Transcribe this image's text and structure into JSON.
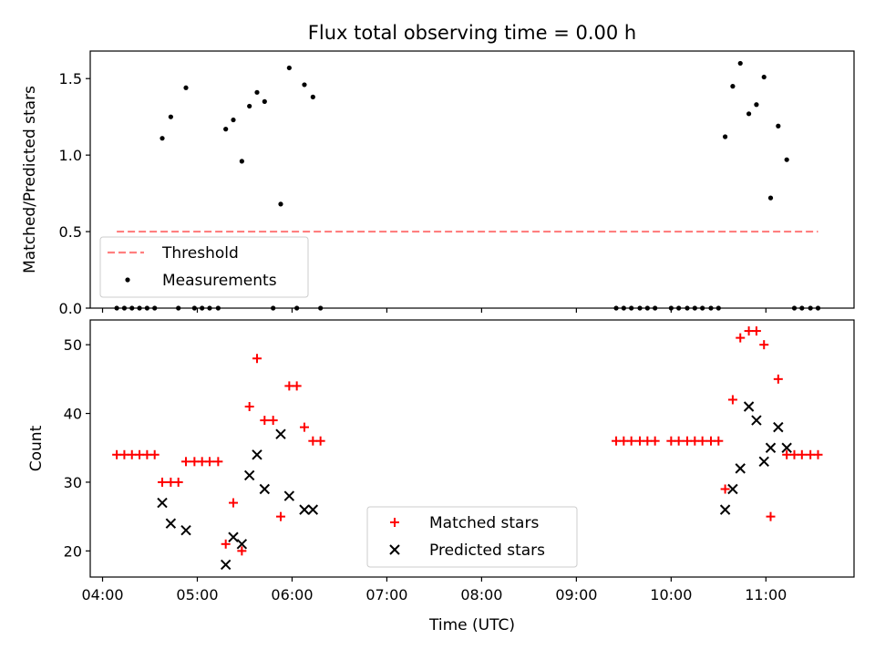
{
  "title": "Flux total observing time = 0.00 h",
  "chart_data": [
    {
      "type": "scatter",
      "ylabel": "Matched/Predicted stars",
      "xlim": [
        3.87,
        11.93
      ],
      "ylim": [
        0,
        1.68
      ],
      "yticks": [
        {
          "v": 0.0,
          "label": "0.0"
        },
        {
          "v": 0.5,
          "label": "0.5"
        },
        {
          "v": 1.0,
          "label": "1.0"
        },
        {
          "v": 1.5,
          "label": "1.5"
        }
      ],
      "legend": {
        "placement": "lower-left",
        "items": [
          {
            "label": "Threshold",
            "kind": "dash-line",
            "color": "#ff7f7f"
          },
          {
            "label": "Measurements",
            "kind": "dot",
            "color": "#000000"
          }
        ]
      },
      "threshold": {
        "value": 0.5,
        "x_range": [
          4.15,
          11.55
        ],
        "color": "#ff7f7f"
      },
      "series": [
        {
          "name": "Measurements",
          "color": "#000000",
          "points": [
            [
              4.15,
              0
            ],
            [
              4.23,
              0
            ],
            [
              4.31,
              0
            ],
            [
              4.39,
              0
            ],
            [
              4.47,
              0
            ],
            [
              4.55,
              0
            ],
            [
              4.63,
              1.11
            ],
            [
              4.72,
              1.25
            ],
            [
              4.8,
              0
            ],
            [
              4.88,
              1.44
            ],
            [
              4.97,
              0
            ],
            [
              5.05,
              0
            ],
            [
              5.13,
              0
            ],
            [
              5.22,
              0
            ],
            [
              5.3,
              1.17
            ],
            [
              5.38,
              1.23
            ],
            [
              5.47,
              0.96
            ],
            [
              5.55,
              1.32
            ],
            [
              5.63,
              1.41
            ],
            [
              5.71,
              1.35
            ],
            [
              5.8,
              0
            ],
            [
              5.88,
              0.68
            ],
            [
              5.97,
              1.57
            ],
            [
              6.05,
              0
            ],
            [
              6.13,
              1.46
            ],
            [
              6.22,
              1.38
            ],
            [
              6.3,
              0
            ],
            [
              9.42,
              0
            ],
            [
              9.5,
              0
            ],
            [
              9.58,
              0
            ],
            [
              9.67,
              0
            ],
            [
              9.75,
              0
            ],
            [
              9.83,
              0
            ],
            [
              10.0,
              0
            ],
            [
              10.08,
              0
            ],
            [
              10.17,
              0
            ],
            [
              10.25,
              0
            ],
            [
              10.33,
              0
            ],
            [
              10.42,
              0
            ],
            [
              10.5,
              0
            ],
            [
              10.57,
              1.12
            ],
            [
              10.65,
              1.45
            ],
            [
              10.73,
              1.6
            ],
            [
              10.82,
              1.27
            ],
            [
              10.9,
              1.33
            ],
            [
              10.98,
              1.51
            ],
            [
              11.05,
              0.72
            ],
            [
              11.13,
              1.19
            ],
            [
              11.22,
              0.97
            ],
            [
              11.3,
              0
            ],
            [
              11.38,
              0
            ],
            [
              11.47,
              0
            ],
            [
              11.55,
              0
            ]
          ]
        }
      ]
    },
    {
      "type": "scatter",
      "ylabel": "Count",
      "xlabel": "Time (UTC)",
      "xlim": [
        3.87,
        11.93
      ],
      "ylim": [
        16.2,
        53.6
      ],
      "xticks": [
        {
          "v": 4,
          "label": "04:00"
        },
        {
          "v": 5,
          "label": "05:00"
        },
        {
          "v": 6,
          "label": "06:00"
        },
        {
          "v": 7,
          "label": "07:00"
        },
        {
          "v": 8,
          "label": "08:00"
        },
        {
          "v": 9,
          "label": "09:00"
        },
        {
          "v": 10,
          "label": "10:00"
        },
        {
          "v": 11,
          "label": "11:00"
        }
      ],
      "yticks": [
        {
          "v": 20,
          "label": "20"
        },
        {
          "v": 30,
          "label": "30"
        },
        {
          "v": 40,
          "label": "40"
        },
        {
          "v": 50,
          "label": "50"
        }
      ],
      "legend": {
        "placement": "lower-center",
        "items": [
          {
            "label": "Matched stars",
            "kind": "plus",
            "color": "#ff0000"
          },
          {
            "label": "Predicted stars",
            "kind": "cross",
            "color": "#000000"
          }
        ]
      },
      "series": [
        {
          "name": "Matched stars",
          "marker": "plus",
          "color": "#ff0000",
          "points": [
            [
              4.15,
              34
            ],
            [
              4.23,
              34
            ],
            [
              4.31,
              34
            ],
            [
              4.39,
              34
            ],
            [
              4.47,
              34
            ],
            [
              4.55,
              34
            ],
            [
              4.63,
              30
            ],
            [
              4.72,
              30
            ],
            [
              4.8,
              30
            ],
            [
              4.88,
              33
            ],
            [
              4.97,
              33
            ],
            [
              5.05,
              33
            ],
            [
              5.13,
              33
            ],
            [
              5.22,
              33
            ],
            [
              5.3,
              21
            ],
            [
              5.38,
              27
            ],
            [
              5.47,
              20
            ],
            [
              5.55,
              41
            ],
            [
              5.63,
              48
            ],
            [
              5.71,
              39
            ],
            [
              5.8,
              39
            ],
            [
              5.88,
              25
            ],
            [
              5.97,
              44
            ],
            [
              6.05,
              44
            ],
            [
              6.13,
              38
            ],
            [
              6.22,
              36
            ],
            [
              6.3,
              36
            ],
            [
              9.42,
              36
            ],
            [
              9.5,
              36
            ],
            [
              9.58,
              36
            ],
            [
              9.67,
              36
            ],
            [
              9.75,
              36
            ],
            [
              9.83,
              36
            ],
            [
              10.0,
              36
            ],
            [
              10.08,
              36
            ],
            [
              10.17,
              36
            ],
            [
              10.25,
              36
            ],
            [
              10.33,
              36
            ],
            [
              10.42,
              36
            ],
            [
              10.5,
              36
            ],
            [
              10.57,
              29
            ],
            [
              10.65,
              42
            ],
            [
              10.73,
              51
            ],
            [
              10.82,
              52
            ],
            [
              10.9,
              52
            ],
            [
              10.98,
              50
            ],
            [
              11.05,
              25
            ],
            [
              11.13,
              45
            ],
            [
              11.22,
              34
            ],
            [
              11.3,
              34
            ],
            [
              11.38,
              34
            ],
            [
              11.47,
              34
            ],
            [
              11.55,
              34
            ]
          ]
        },
        {
          "name": "Predicted stars",
          "marker": "cross",
          "color": "#000000",
          "points": [
            [
              4.63,
              27
            ],
            [
              4.72,
              24
            ],
            [
              4.88,
              23
            ],
            [
              5.3,
              18
            ],
            [
              5.38,
              22
            ],
            [
              5.47,
              21
            ],
            [
              5.55,
              31
            ],
            [
              5.63,
              34
            ],
            [
              5.71,
              29
            ],
            [
              5.88,
              37
            ],
            [
              5.97,
              28
            ],
            [
              6.13,
              26
            ],
            [
              6.22,
              26
            ],
            [
              10.57,
              26
            ],
            [
              10.65,
              29
            ],
            [
              10.73,
              32
            ],
            [
              10.82,
              41
            ],
            [
              10.9,
              39
            ],
            [
              10.98,
              33
            ],
            [
              11.05,
              35
            ],
            [
              11.13,
              38
            ],
            [
              11.22,
              35
            ]
          ]
        }
      ]
    }
  ]
}
